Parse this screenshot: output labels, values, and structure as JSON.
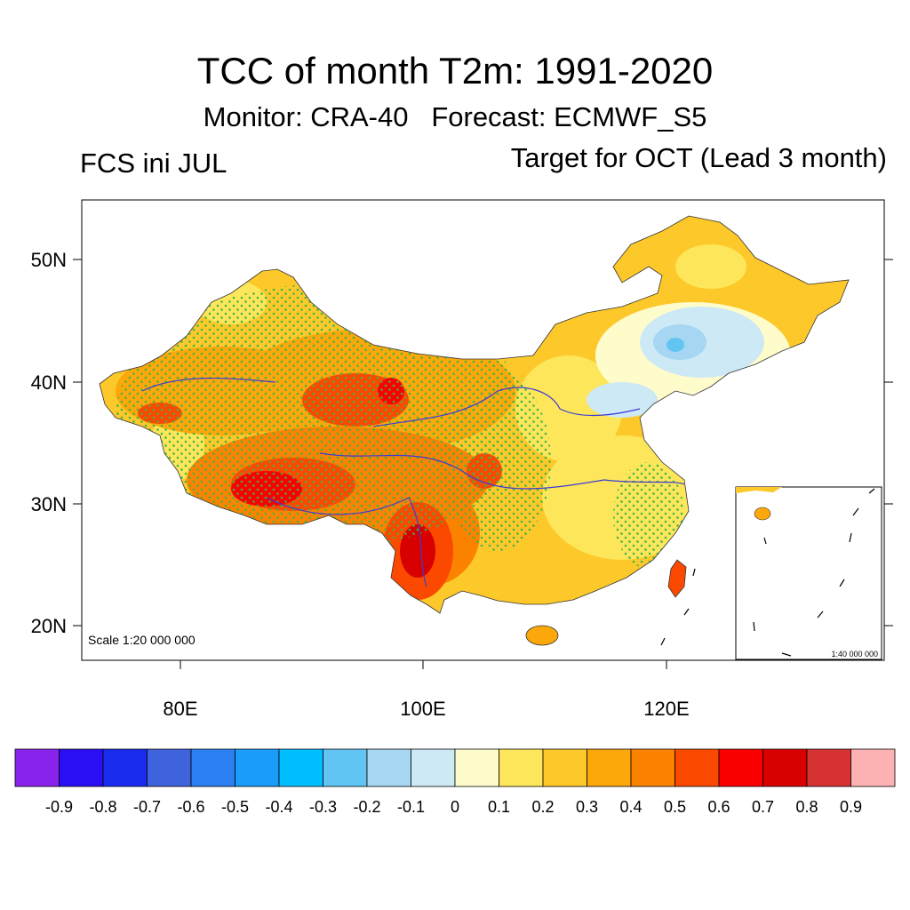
{
  "title": "TCC of month T2m: 1991-2020",
  "subtitle": "Monitor: CRA-40   Forecast: ECMWF_S5",
  "left_label": "FCS ini JUL",
  "right_label": "Target for OCT (Lead 3 month)",
  "scale_main": "Scale 1:20 000 000",
  "scale_inset": "1:40 000 000",
  "lat_ticks": [
    "50N",
    "40N",
    "30N",
    "20N"
  ],
  "lon_ticks": [
    "80E",
    "100E",
    "120E"
  ],
  "colorbar": {
    "labels": [
      "-0.9",
      "-0.8",
      "-0.7",
      "-0.6",
      "-0.5",
      "-0.4",
      "-0.3",
      "-0.2",
      "-0.1",
      "0",
      "0.1",
      "0.2",
      "0.3",
      "0.4",
      "0.5",
      "0.6",
      "0.7",
      "0.8",
      "0.9"
    ],
    "colors": [
      "#8a22ee",
      "#2a0ff5",
      "#1a2bf0",
      "#3f62dd",
      "#2b7ff0",
      "#1a9cfb",
      "#00bfff",
      "#62c4f3",
      "#a6d6f1",
      "#cde9f6",
      "#fffccb",
      "#fde65a",
      "#fdc82a",
      "#fda80a",
      "#fb8300",
      "#fb4a00",
      "#fb0000",
      "#d80000",
      "#d73232",
      "#fcb2b2"
    ]
  },
  "colors": {
    "stipple": "#39b54a",
    "river": "#3b3bd6",
    "coast": "#3333cc"
  }
}
